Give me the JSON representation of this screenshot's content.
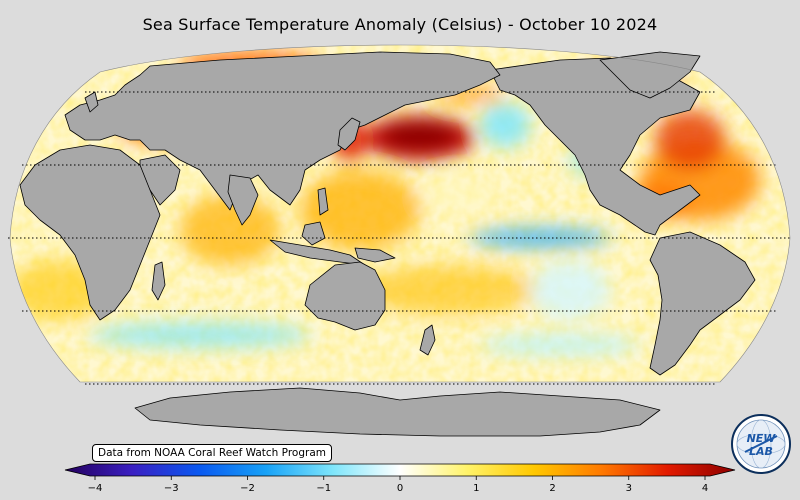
{
  "title": "Sea Surface Temperature Anomaly (Celsius) - October 10 2024",
  "credit": "Data from NOAA Coral Reef Watch Program",
  "colorbar": {
    "min": -4,
    "max": 4,
    "ticks": [
      "−4",
      "−3",
      "−2",
      "−1",
      "0",
      "1",
      "2",
      "3",
      "4"
    ],
    "tick_values": [
      -4,
      -3,
      -2,
      -1,
      0,
      1,
      2,
      3,
      4
    ],
    "colors": [
      "#24005c",
      "#3a1fc2",
      "#0a58f0",
      "#18a2f7",
      "#7fe6fb",
      "#ffffff",
      "#fff36a",
      "#ffc800",
      "#ff7a00",
      "#e21a00",
      "#8c0000"
    ]
  },
  "map": {
    "projection": "Robinson",
    "ocean_background": "#ffffff",
    "land_color": "#a8a8a8",
    "coastline_color": "#000000",
    "latitude_lines": [
      60,
      30,
      0,
      -30,
      -60
    ],
    "features": [
      "marine-heatwave-north-pacific",
      "cool-anomaly-equatorial-pacific",
      "cool-anomaly-southern-ocean"
    ]
  },
  "logo": {
    "text": "NEW LAB",
    "icon": "globe-logo-icon"
  }
}
